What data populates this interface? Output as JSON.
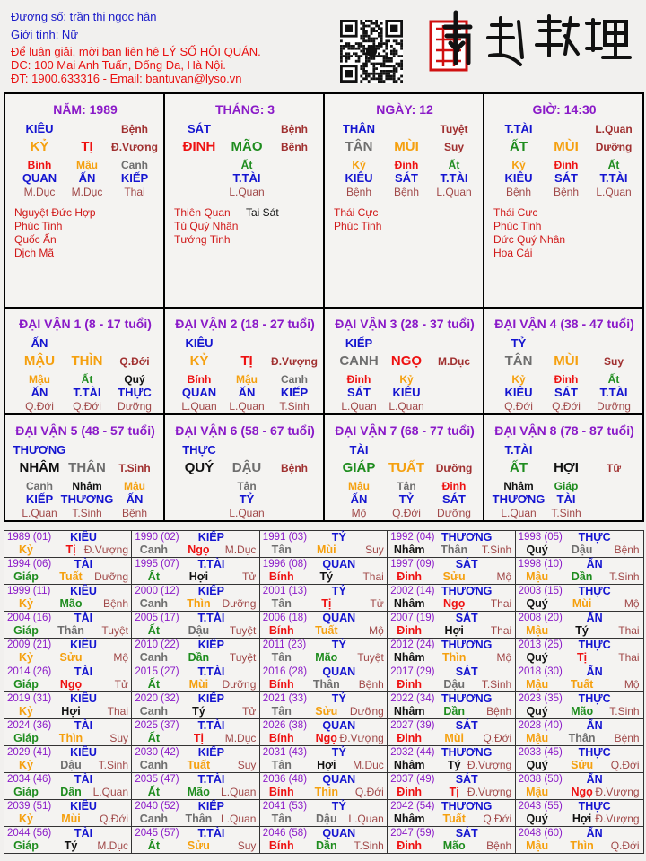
{
  "header": {
    "name_line": "Đương số: trần thị ngọc hân",
    "gender_line": "Giới tính:  Nữ",
    "contact_line": "Để luận giải, mời bạn liên hệ LÝ SỐ HỘI QUÁN.",
    "address_line": "ĐC: 100 Mai Anh Tuấn, Đống Đa, Hà Nội.",
    "phone_line": "ĐT: 1900.633316 - Email: bantuvan@lyso.vn",
    "logo_text": "南越數理"
  },
  "colors": {
    "wood": "#1e8c1e",
    "fire": "#ee1111",
    "earth": "#f5a00f",
    "metal": "#6e6e6e",
    "water": "#111111",
    "title": "#8a1ac8",
    "god": "#1414d0",
    "star": "#d01818"
  },
  "element_of": {
    "giáp": "wood",
    "ất": "wood",
    "dần": "wood",
    "mão": "wood",
    "bính": "fire",
    "đinh": "fire",
    "tị": "fire",
    "ngọ": "fire",
    "mậu": "earth",
    "kỷ": "earth",
    "thìn": "earth",
    "tuất": "earth",
    "sửu": "earth",
    "mùi": "earth",
    "canh": "metal",
    "tân": "metal",
    "thân": "metal",
    "dậu": "metal",
    "nhâm": "water",
    "quý": "water",
    "hợi": "water",
    "tý": "water"
  },
  "pillars": [
    {
      "title": "NĂM: 1989",
      "god": "KIÊU",
      "top_phase": "Bệnh",
      "stem": "KỶ",
      "branch": "TỊ",
      "phase": "Đ.Vượng",
      "hidden": [
        {
          "stem": "Bính",
          "god": "QUAN",
          "phase": "M.Dục"
        },
        {
          "stem": "Mậu",
          "god": "ẤN",
          "phase": "M.Dục"
        },
        {
          "stem": "Canh",
          "god": "KIẾP",
          "phase": "Thai"
        }
      ],
      "stars": [
        "Nguyệt Đức Hợp",
        "Phúc Tinh",
        "Quốc Ấn",
        "Dịch Mã"
      ],
      "bad_stars": []
    },
    {
      "title": "THÁNG: 3",
      "god": "SÁT",
      "top_phase": "Bệnh",
      "stem": "ĐINH",
      "branch": "MÃO",
      "phase": "Bệnh",
      "hidden": [
        {
          "stem": "Ất",
          "god": "T.TÀI",
          "phase": "L.Quan"
        }
      ],
      "stars": [
        "Thiên Quan",
        "Tú Quý Nhân",
        "Tướng Tinh"
      ],
      "bad_stars": [
        "Tai Sát"
      ]
    },
    {
      "title": "NGÀY: 12",
      "god": "THÂN",
      "top_phase": "Tuyệt",
      "stem": "TÂN",
      "branch": "MÙI",
      "phase": "Suy",
      "hidden": [
        {
          "stem": "Kỷ",
          "god": "KIÊU",
          "phase": "Bệnh"
        },
        {
          "stem": "Đinh",
          "god": "SÁT",
          "phase": "Bệnh"
        },
        {
          "stem": "Ất",
          "god": "T.TÀI",
          "phase": "L.Quan"
        }
      ],
      "stars": [
        "Thái Cực",
        "Phúc Tinh"
      ],
      "bad_stars": []
    },
    {
      "title": "GIỜ: 14:30",
      "god": "T.TÀI",
      "top_phase": "L.Quan",
      "stem": "ẤT",
      "branch": "MÙI",
      "phase": "Dưỡng",
      "hidden": [
        {
          "stem": "Kỷ",
          "god": "KIÊU",
          "phase": "Bệnh"
        },
        {
          "stem": "Đinh",
          "god": "SÁT",
          "phase": "Bệnh"
        },
        {
          "stem": "Ất",
          "god": "T.TÀI",
          "phase": "L.Quan"
        }
      ],
      "stars": [
        "Thái Cực",
        "Phúc Tinh",
        "Đức Quý Nhân",
        "Hoa Cái"
      ],
      "bad_stars": []
    }
  ],
  "dai_van": [
    {
      "title": "ĐẠI VẬN 1 (8 - 17 tuổi)",
      "god": "ẤN",
      "stem": "MẬU",
      "branch": "THÌN",
      "phase": "Q.Đới",
      "hidden": [
        {
          "stem": "Mậu",
          "god": "ẤN",
          "phase": "Q.Đới"
        },
        {
          "stem": "Ất",
          "god": "T.TÀI",
          "phase": "Q.Đới"
        },
        {
          "stem": "Quý",
          "god": "THỰC",
          "phase": "Dưỡng"
        }
      ]
    },
    {
      "title": "ĐẠI VẬN 2 (18 - 27 tuổi)",
      "god": "KIÊU",
      "stem": "KỶ",
      "branch": "TỊ",
      "phase": "Đ.Vượng",
      "hidden": [
        {
          "stem": "Bính",
          "god": "QUAN",
          "phase": "L.Quan"
        },
        {
          "stem": "Mậu",
          "god": "ẤN",
          "phase": "L.Quan"
        },
        {
          "stem": "Canh",
          "god": "KIẾP",
          "phase": "T.Sinh"
        }
      ]
    },
    {
      "title": "ĐẠI VẬN 3 (28 - 37 tuổi)",
      "god": "KIẾP",
      "stem": "CANH",
      "branch": "NGỌ",
      "phase": "M.Dục",
      "hidden": [
        {
          "stem": "Đinh",
          "god": "SÁT",
          "phase": "L.Quan"
        },
        {
          "stem": "Kỷ",
          "god": "KIÊU",
          "phase": "L.Quan"
        }
      ]
    },
    {
      "title": "ĐẠI VẬN 4 (38 - 47 tuổi)",
      "god": "TỶ",
      "stem": "TÂN",
      "branch": "MÙI",
      "phase": "Suy",
      "hidden": [
        {
          "stem": "Kỷ",
          "god": "KIÊU",
          "phase": "Q.Đới"
        },
        {
          "stem": "Đinh",
          "god": "SÁT",
          "phase": "Q.Đới"
        },
        {
          "stem": "Ất",
          "god": "T.TÀI",
          "phase": "Dưỡng"
        }
      ]
    },
    {
      "title": "ĐẠI VẬN 5 (48 - 57 tuổi)",
      "god": "THƯƠNG",
      "stem": "NHÂM",
      "branch": "THÂN",
      "phase": "T.Sinh",
      "hidden": [
        {
          "stem": "Canh",
          "god": "KIẾP",
          "phase": "L.Quan"
        },
        {
          "stem": "Nhâm",
          "god": "THƯƠNG",
          "phase": "T.Sinh"
        },
        {
          "stem": "Mậu",
          "god": "ẤN",
          "phase": "Bệnh"
        }
      ]
    },
    {
      "title": "ĐẠI VẬN 6 (58 - 67 tuổi)",
      "god": "THỰC",
      "stem": "QUÝ",
      "branch": "DẬU",
      "phase": "Bệnh",
      "hidden": [
        {
          "stem": "Tân",
          "god": "TỶ",
          "phase": "L.Quan"
        }
      ]
    },
    {
      "title": "ĐẠI VẬN 7 (68 - 77 tuổi)",
      "god": "TÀI",
      "stem": "GIÁP",
      "branch": "TUẤT",
      "phase": "Dưỡng",
      "hidden": [
        {
          "stem": "Mậu",
          "god": "ẤN",
          "phase": "Mộ"
        },
        {
          "stem": "Tân",
          "god": "TỶ",
          "phase": "Q.Đới"
        },
        {
          "stem": "Đinh",
          "god": "SÁT",
          "phase": "Dưỡng"
        }
      ]
    },
    {
      "title": "ĐẠI VẬN 8 (78 - 87 tuổi)",
      "god": "T.TÀI",
      "stem": "ẤT",
      "branch": "HỢI",
      "phase": "Tử",
      "hidden": [
        {
          "stem": "Nhâm",
          "god": "THƯƠNG",
          "phase": "L.Quan"
        },
        {
          "stem": "Giáp",
          "god": "TÀI",
          "phase": "T.Sinh"
        }
      ]
    }
  ],
  "years": [
    [
      "1989 (01)",
      "KIÊU",
      "Kỷ",
      "Tị",
      "Đ.Vượng"
    ],
    [
      "1990 (02)",
      "KIẾP",
      "Canh",
      "Ngọ",
      "M.Dục"
    ],
    [
      "1991 (03)",
      "TỶ",
      "Tân",
      "Mùi",
      "Suy"
    ],
    [
      "1992 (04)",
      "THƯƠNG",
      "Nhâm",
      "Thân",
      "T.Sinh"
    ],
    [
      "1993 (05)",
      "THỰC",
      "Quý",
      "Dậu",
      "Bệnh"
    ],
    [
      "1994 (06)",
      "TÀI",
      "Giáp",
      "Tuất",
      "Dưỡng"
    ],
    [
      "1995 (07)",
      "T.TÀI",
      "Ất",
      "Hợi",
      "Tử"
    ],
    [
      "1996 (08)",
      "QUAN",
      "Bính",
      "Tý",
      "Thai"
    ],
    [
      "1997 (09)",
      "SÁT",
      "Đinh",
      "Sửu",
      "Mộ"
    ],
    [
      "1998 (10)",
      "ẤN",
      "Mậu",
      "Dần",
      "T.Sinh"
    ],
    [
      "1999 (11)",
      "KIÊU",
      "Kỷ",
      "Mão",
      "Bệnh"
    ],
    [
      "2000 (12)",
      "KIẾP",
      "Canh",
      "Thìn",
      "Dưỡng"
    ],
    [
      "2001 (13)",
      "TỶ",
      "Tân",
      "Tị",
      "Tử"
    ],
    [
      "2002 (14)",
      "THƯƠNG",
      "Nhâm",
      "Ngọ",
      "Thai"
    ],
    [
      "2003 (15)",
      "THỰC",
      "Quý",
      "Mùi",
      "Mộ"
    ],
    [
      "2004 (16)",
      "TÀI",
      "Giáp",
      "Thân",
      "Tuyệt"
    ],
    [
      "2005 (17)",
      "T.TÀI",
      "Ất",
      "Dậu",
      "Tuyệt"
    ],
    [
      "2006 (18)",
      "QUAN",
      "Bính",
      "Tuất",
      "Mộ"
    ],
    [
      "2007 (19)",
      "SÁT",
      "Đinh",
      "Hợi",
      "Thai"
    ],
    [
      "2008 (20)",
      "ẤN",
      "Mậu",
      "Tý",
      "Thai"
    ],
    [
      "2009 (21)",
      "KIÊU",
      "Kỷ",
      "Sửu",
      "Mộ"
    ],
    [
      "2010 (22)",
      "KIẾP",
      "Canh",
      "Dần",
      "Tuyệt"
    ],
    [
      "2011 (23)",
      "TỶ",
      "Tân",
      "Mão",
      "Tuyệt"
    ],
    [
      "2012 (24)",
      "THƯƠNG",
      "Nhâm",
      "Thìn",
      "Mộ"
    ],
    [
      "2013 (25)",
      "THỰC",
      "Quý",
      "Tị",
      "Thai"
    ],
    [
      "2014 (26)",
      "TÀI",
      "Giáp",
      "Ngọ",
      "Tử"
    ],
    [
      "2015 (27)",
      "T.TÀI",
      "Ất",
      "Mùi",
      "Dưỡng"
    ],
    [
      "2016 (28)",
      "QUAN",
      "Bính",
      "Thân",
      "Bệnh"
    ],
    [
      "2017 (29)",
      "SÁT",
      "Đinh",
      "Dậu",
      "T.Sinh"
    ],
    [
      "2018 (30)",
      "ẤN",
      "Mậu",
      "Tuất",
      "Mộ"
    ],
    [
      "2019 (31)",
      "KIÊU",
      "Kỷ",
      "Hợi",
      "Thai"
    ],
    [
      "2020 (32)",
      "KIẾP",
      "Canh",
      "Tý",
      "Tử"
    ],
    [
      "2021 (33)",
      "TỶ",
      "Tân",
      "Sửu",
      "Dưỡng"
    ],
    [
      "2022 (34)",
      "THƯƠNG",
      "Nhâm",
      "Dần",
      "Bệnh"
    ],
    [
      "2023 (35)",
      "THỰC",
      "Quý",
      "Mão",
      "T.Sinh"
    ],
    [
      "2024 (36)",
      "TÀI",
      "Giáp",
      "Thìn",
      "Suy"
    ],
    [
      "2025 (37)",
      "T.TÀI",
      "Ất",
      "Tị",
      "M.Dục"
    ],
    [
      "2026 (38)",
      "QUAN",
      "Bính",
      "Ngọ",
      "Đ.Vượng"
    ],
    [
      "2027 (39)",
      "SÁT",
      "Đinh",
      "Mùi",
      "Q.Đới"
    ],
    [
      "2028 (40)",
      "ẤN",
      "Mậu",
      "Thân",
      "Bệnh"
    ],
    [
      "2029 (41)",
      "KIÊU",
      "Kỷ",
      "Dậu",
      "T.Sinh"
    ],
    [
      "2030 (42)",
      "KIẾP",
      "Canh",
      "Tuất",
      "Suy"
    ],
    [
      "2031 (43)",
      "TỶ",
      "Tân",
      "Hợi",
      "M.Dục"
    ],
    [
      "2032 (44)",
      "THƯƠNG",
      "Nhâm",
      "Tý",
      "Đ.Vượng"
    ],
    [
      "2033 (45)",
      "THỰC",
      "Quý",
      "Sửu",
      "Q.Đới"
    ],
    [
      "2034 (46)",
      "TÀI",
      "Giáp",
      "Dần",
      "L.Quan"
    ],
    [
      "2035 (47)",
      "T.TÀI",
      "Ất",
      "Mão",
      "L.Quan"
    ],
    [
      "2036 (48)",
      "QUAN",
      "Bính",
      "Thìn",
      "Q.Đới"
    ],
    [
      "2037 (49)",
      "SÁT",
      "Đinh",
      "Tị",
      "Đ.Vượng"
    ],
    [
      "2038 (50)",
      "ẤN",
      "Mậu",
      "Ngọ",
      "Đ.Vượng"
    ],
    [
      "2039 (51)",
      "KIÊU",
      "Kỷ",
      "Mùi",
      "Q.Đới"
    ],
    [
      "2040 (52)",
      "KIẾP",
      "Canh",
      "Thân",
      "L.Quan"
    ],
    [
      "2041 (53)",
      "TỶ",
      "Tân",
      "Dậu",
      "L.Quan"
    ],
    [
      "2042 (54)",
      "THƯƠNG",
      "Nhâm",
      "Tuất",
      "Q.Đới"
    ],
    [
      "2043 (55)",
      "THỰC",
      "Quý",
      "Hợi",
      "Đ.Vượng"
    ],
    [
      "2044 (56)",
      "TÀI",
      "Giáp",
      "Tý",
      "M.Dục"
    ],
    [
      "2045 (57)",
      "T.TÀI",
      "Ất",
      "Sửu",
      "Suy"
    ],
    [
      "2046 (58)",
      "QUAN",
      "Bính",
      "Dần",
      "T.Sinh"
    ],
    [
      "2047 (59)",
      "SÁT",
      "Đinh",
      "Mão",
      "Bệnh"
    ],
    [
      "2048 (60)",
      "ẤN",
      "Mậu",
      "Thìn",
      "Q.Đới"
    ]
  ]
}
